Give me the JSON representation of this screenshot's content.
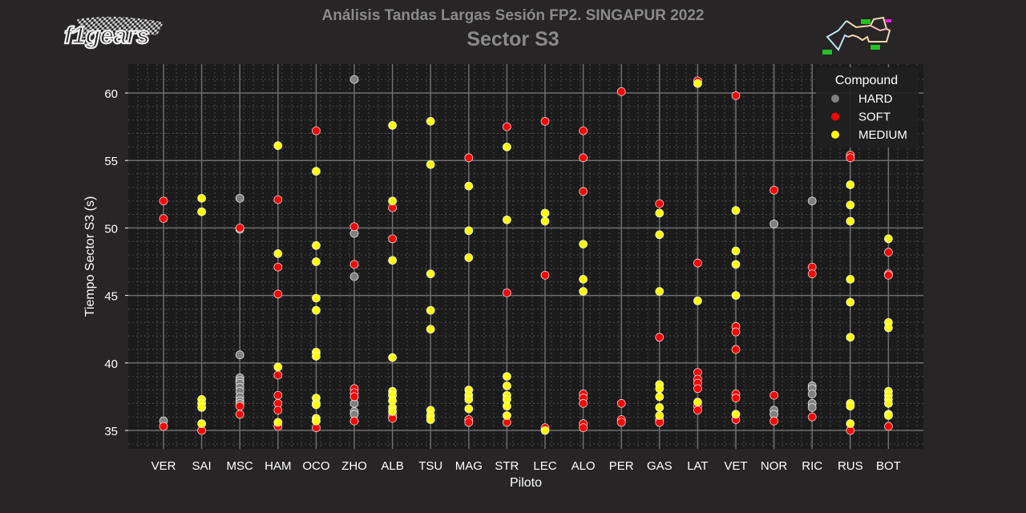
{
  "header": {
    "title": "Análisis Tandas Largas Sesión FP2. SINGAPUR 2022",
    "subtitle": "Sector S3",
    "logo_text": "f1gears"
  },
  "colors": {
    "background": "#272525",
    "plot_bg": "#1b1b1b",
    "grid_major": "#6e6e6e",
    "grid_minor": "#4a4a4a",
    "text": "#ffffff",
    "title": "#8a8a8a",
    "HARD": "#808080",
    "SOFT": "#ff0000",
    "MEDIUM": "#ffff00"
  },
  "legend": {
    "title": "Compound",
    "items": [
      {
        "label": "HARD",
        "color": "#808080"
      },
      {
        "label": "SOFT",
        "color": "#ff0000"
      },
      {
        "label": "MEDIUM",
        "color": "#ffff00"
      }
    ]
  },
  "chart_data": {
    "type": "scatter",
    "title": "Análisis Tandas Largas Sesión FP2. SINGAPUR 2022 — Sector S3",
    "xlabel": "Piloto",
    "ylabel": "Tiempo Sector S3 (s)",
    "ylim": [
      33.8,
      62.0
    ],
    "yticks": [
      35,
      40,
      45,
      50,
      55,
      60
    ],
    "grid": true,
    "legend_position": "upper right",
    "categories": [
      "VER",
      "SAI",
      "MSC",
      "HAM",
      "OCO",
      "ZHO",
      "ALB",
      "TSU",
      "MAG",
      "STR",
      "LEC",
      "ALO",
      "PER",
      "GAS",
      "LAT",
      "VET",
      "NOR",
      "RIC",
      "RUS",
      "BOT"
    ],
    "series": [
      {
        "name": "HARD",
        "points": [
          [
            "VER",
            35.7
          ],
          [
            "MSC",
            52.2
          ],
          [
            "MSC",
            49.9
          ],
          [
            "MSC",
            40.6
          ],
          [
            "MSC",
            38.9
          ],
          [
            "MSC",
            38.7
          ],
          [
            "MSC",
            38.5
          ],
          [
            "MSC",
            38.2
          ],
          [
            "MSC",
            37.9
          ],
          [
            "MSC",
            37.5
          ],
          [
            "MSC",
            37.2
          ],
          [
            "MSC",
            37.0
          ],
          [
            "ZHO",
            61.0
          ],
          [
            "ZHO",
            49.6
          ],
          [
            "ZHO",
            46.4
          ],
          [
            "ZHO",
            37.0
          ],
          [
            "ZHO",
            36.4
          ],
          [
            "ZHO",
            36.2
          ],
          [
            "NOR",
            50.3
          ],
          [
            "NOR",
            36.5
          ],
          [
            "NOR",
            36.2
          ],
          [
            "RIC",
            52.0
          ],
          [
            "RIC",
            38.3
          ],
          [
            "RIC",
            38.1
          ],
          [
            "RIC",
            37.7
          ],
          [
            "RIC",
            37.0
          ],
          [
            "RIC",
            36.7
          ]
        ]
      },
      {
        "name": "SOFT",
        "points": [
          [
            "VER",
            52.0
          ],
          [
            "VER",
            50.7
          ],
          [
            "VER",
            35.3
          ],
          [
            "SAI",
            35.0
          ],
          [
            "MSC",
            50.0
          ],
          [
            "MSC",
            36.8
          ],
          [
            "MSC",
            36.2
          ],
          [
            "HAM",
            52.1
          ],
          [
            "HAM",
            47.1
          ],
          [
            "HAM",
            45.1
          ],
          [
            "HAM",
            39.1
          ],
          [
            "HAM",
            37.6
          ],
          [
            "HAM",
            37.0
          ],
          [
            "HAM",
            36.5
          ],
          [
            "HAM",
            35.3
          ],
          [
            "OCO",
            57.2
          ],
          [
            "OCO",
            35.2
          ],
          [
            "ZHO",
            50.1
          ],
          [
            "ZHO",
            47.3
          ],
          [
            "ZHO",
            38.1
          ],
          [
            "ZHO",
            37.8
          ],
          [
            "ZHO",
            37.5
          ],
          [
            "ZHO",
            35.7
          ],
          [
            "ALB",
            51.5
          ],
          [
            "ALB",
            49.2
          ],
          [
            "ALB",
            36.1
          ],
          [
            "ALB",
            35.9
          ],
          [
            "MAG",
            55.2
          ],
          [
            "MAG",
            35.8
          ],
          [
            "MAG",
            35.6
          ],
          [
            "STR",
            57.5
          ],
          [
            "STR",
            45.2
          ],
          [
            "STR",
            35.6
          ],
          [
            "LEC",
            57.9
          ],
          [
            "LEC",
            46.5
          ],
          [
            "LEC",
            35.2
          ],
          [
            "ALO",
            57.2
          ],
          [
            "ALO",
            55.2
          ],
          [
            "ALO",
            52.7
          ],
          [
            "ALO",
            37.7
          ],
          [
            "ALO",
            37.4
          ],
          [
            "ALO",
            37.0
          ],
          [
            "ALO",
            35.5
          ],
          [
            "ALO",
            35.2
          ],
          [
            "PER",
            60.1
          ],
          [
            "PER",
            37.0
          ],
          [
            "PER",
            35.8
          ],
          [
            "PER",
            35.6
          ],
          [
            "GAS",
            51.8
          ],
          [
            "GAS",
            41.9
          ],
          [
            "GAS",
            35.8
          ],
          [
            "GAS",
            35.6
          ],
          [
            "LAT",
            60.9
          ],
          [
            "LAT",
            47.4
          ],
          [
            "LAT",
            39.3
          ],
          [
            "LAT",
            38.8
          ],
          [
            "LAT",
            38.5
          ],
          [
            "LAT",
            38.1
          ],
          [
            "LAT",
            36.8
          ],
          [
            "LAT",
            36.5
          ],
          [
            "VET",
            59.8
          ],
          [
            "VET",
            42.7
          ],
          [
            "VET",
            42.3
          ],
          [
            "VET",
            41.0
          ],
          [
            "VET",
            37.7
          ],
          [
            "VET",
            37.4
          ],
          [
            "VET",
            35.8
          ],
          [
            "NOR",
            52.8
          ],
          [
            "NOR",
            37.6
          ],
          [
            "NOR",
            35.7
          ],
          [
            "RIC",
            47.1
          ],
          [
            "RIC",
            46.6
          ],
          [
            "RIC",
            36.0
          ],
          [
            "RUS",
            55.4
          ],
          [
            "RUS",
            55.2
          ],
          [
            "RUS",
            35.0
          ],
          [
            "BOT",
            48.2
          ],
          [
            "BOT",
            46.6
          ],
          [
            "BOT",
            46.5
          ],
          [
            "BOT",
            35.3
          ]
        ]
      },
      {
        "name": "MEDIUM",
        "points": [
          [
            "SAI",
            52.2
          ],
          [
            "SAI",
            51.2
          ],
          [
            "SAI",
            37.3
          ],
          [
            "SAI",
            37.0
          ],
          [
            "SAI",
            36.7
          ],
          [
            "SAI",
            35.5
          ],
          [
            "HAM",
            56.1
          ],
          [
            "HAM",
            48.1
          ],
          [
            "HAM",
            39.7
          ],
          [
            "HAM",
            35.6
          ],
          [
            "OCO",
            54.2
          ],
          [
            "OCO",
            48.7
          ],
          [
            "OCO",
            47.5
          ],
          [
            "OCO",
            44.8
          ],
          [
            "OCO",
            43.9
          ],
          [
            "OCO",
            40.8
          ],
          [
            "OCO",
            40.5
          ],
          [
            "OCO",
            37.4
          ],
          [
            "OCO",
            37.0
          ],
          [
            "OCO",
            36.9
          ],
          [
            "OCO",
            35.9
          ],
          [
            "OCO",
            35.7
          ],
          [
            "ALB",
            57.6
          ],
          [
            "ALB",
            52.0
          ],
          [
            "ALB",
            47.6
          ],
          [
            "ALB",
            40.4
          ],
          [
            "ALB",
            37.9
          ],
          [
            "ALB",
            37.6
          ],
          [
            "ALB",
            37.2
          ],
          [
            "ALB",
            36.7
          ],
          [
            "ALB",
            36.4
          ],
          [
            "TSU",
            57.9
          ],
          [
            "TSU",
            54.7
          ],
          [
            "TSU",
            46.6
          ],
          [
            "TSU",
            43.9
          ],
          [
            "TSU",
            42.5
          ],
          [
            "TSU",
            36.5
          ],
          [
            "TSU",
            36.1
          ],
          [
            "TSU",
            35.8
          ],
          [
            "MAG",
            53.1
          ],
          [
            "MAG",
            49.8
          ],
          [
            "MAG",
            47.8
          ],
          [
            "MAG",
            38.0
          ],
          [
            "MAG",
            37.6
          ],
          [
            "MAG",
            37.3
          ],
          [
            "MAG",
            36.6
          ],
          [
            "STR",
            56.0
          ],
          [
            "STR",
            50.6
          ],
          [
            "STR",
            39.0
          ],
          [
            "STR",
            38.3
          ],
          [
            "STR",
            37.6
          ],
          [
            "STR",
            37.3
          ],
          [
            "STR",
            36.8
          ],
          [
            "STR",
            36.1
          ],
          [
            "LEC",
            51.1
          ],
          [
            "LEC",
            50.5
          ],
          [
            "LEC",
            35.0
          ],
          [
            "ALO",
            48.8
          ],
          [
            "ALO",
            46.2
          ],
          [
            "ALO",
            45.3
          ],
          [
            "GAS",
            51.1
          ],
          [
            "GAS",
            49.5
          ],
          [
            "GAS",
            45.3
          ],
          [
            "GAS",
            38.4
          ],
          [
            "GAS",
            38.1
          ],
          [
            "GAS",
            37.5
          ],
          [
            "GAS",
            36.7
          ],
          [
            "GAS",
            36.1
          ],
          [
            "LAT",
            60.7
          ],
          [
            "LAT",
            44.6
          ],
          [
            "LAT",
            37.1
          ],
          [
            "VET",
            51.3
          ],
          [
            "VET",
            48.3
          ],
          [
            "VET",
            47.3
          ],
          [
            "VET",
            45.0
          ],
          [
            "VET",
            36.2
          ],
          [
            "RUS",
            53.2
          ],
          [
            "RUS",
            51.7
          ],
          [
            "RUS",
            50.5
          ],
          [
            "RUS",
            46.2
          ],
          [
            "RUS",
            44.5
          ],
          [
            "RUS",
            41.9
          ],
          [
            "RUS",
            37.0
          ],
          [
            "RUS",
            36.8
          ],
          [
            "RUS",
            35.5
          ],
          [
            "BOT",
            49.2
          ],
          [
            "BOT",
            43.0
          ],
          [
            "BOT",
            42.6
          ],
          [
            "BOT",
            37.9
          ],
          [
            "BOT",
            37.6
          ],
          [
            "BOT",
            37.3
          ],
          [
            "BOT",
            37.0
          ],
          [
            "BOT",
            36.2
          ],
          [
            "BOT",
            36.1
          ]
        ]
      }
    ]
  }
}
